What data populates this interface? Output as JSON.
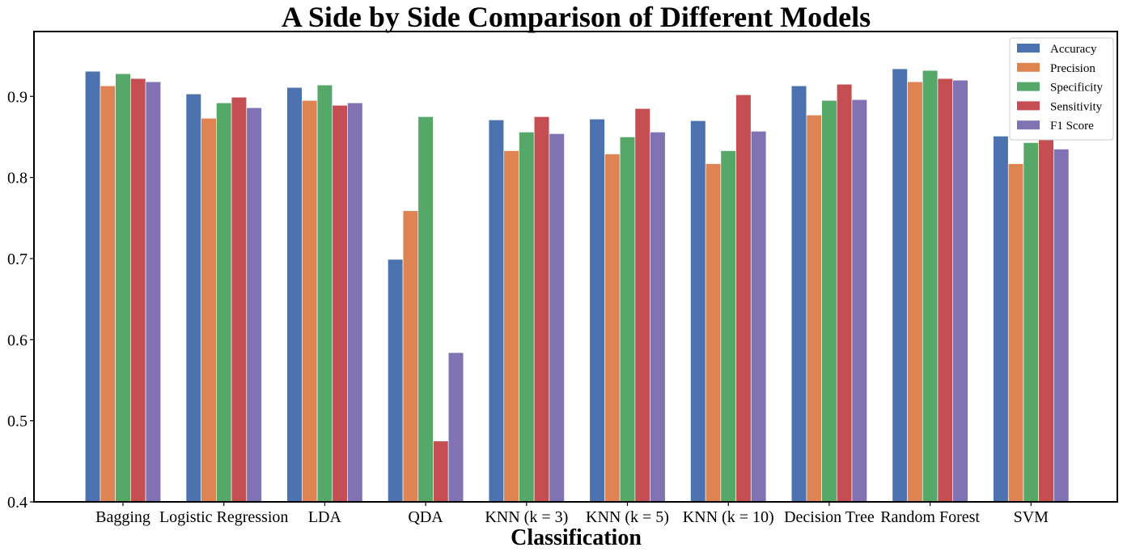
{
  "chart_data": {
    "type": "bar",
    "title": "A Side by Side Comparison of Different Models",
    "xlabel": "Classification",
    "ylabel": "",
    "ylim": [
      0.4,
      0.98
    ],
    "yticks": [
      "0.4",
      "0.5",
      "0.6",
      "0.7",
      "0.8",
      "0.9"
    ],
    "ytick_values": [
      0.4,
      0.5,
      0.6,
      0.7,
      0.8,
      0.9
    ],
    "grid": false,
    "legend_position": "top-right",
    "categories": [
      "Bagging",
      "Logistic Regression",
      "LDA",
      "QDA",
      "KNN (k = 3)",
      "KNN (k = 5)",
      "KNN (k = 10)",
      "Decision Tree",
      "Random Forest",
      "SVM"
    ],
    "series": [
      {
        "name": "Accuracy",
        "color": "#4c72b0",
        "values": [
          0.931,
          0.903,
          0.911,
          0.699,
          0.871,
          0.872,
          0.87,
          0.913,
          0.934,
          0.851
        ]
      },
      {
        "name": "Precision",
        "color": "#dd8452",
        "values": [
          0.913,
          0.873,
          0.895,
          0.759,
          0.833,
          0.829,
          0.817,
          0.877,
          0.918,
          0.817
        ]
      },
      {
        "name": "Specificity",
        "color": "#55a868",
        "values": [
          0.928,
          0.892,
          0.914,
          0.875,
          0.856,
          0.85,
          0.833,
          0.895,
          0.932,
          0.843
        ]
      },
      {
        "name": "Sensitivity",
        "color": "#c44e52",
        "values": [
          0.922,
          0.899,
          0.889,
          0.475,
          0.875,
          0.885,
          0.902,
          0.915,
          0.922,
          0.851
        ]
      },
      {
        "name": "F1 Score",
        "color": "#8172b3",
        "values": [
          0.918,
          0.886,
          0.892,
          0.584,
          0.854,
          0.856,
          0.857,
          0.896,
          0.92,
          0.835
        ]
      }
    ]
  }
}
